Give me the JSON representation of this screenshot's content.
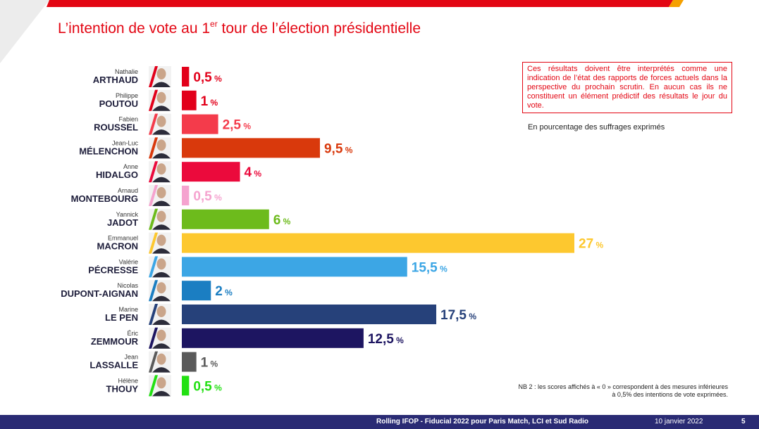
{
  "slide": {
    "title_main": "L’intention de vote au 1",
    "title_sup": "er",
    "title_rest": " tour de l’élection présidentielle",
    "disclaimer": "Ces résultats doivent être interprétés comme une indication de l’état des rapports de forces actuels dans la perspective du prochain scrutin. En aucun cas ils ne constituent un élément prédictif des résultats le jour du vote.",
    "unit_note": "En pourcentage des suffrages exprimés",
    "nb_note": "NB 2 : les scores affichés à « 0 » correspondent à des mesures inférieures à 0,5% des intentions de vote exprimées.",
    "footer_source": "Rolling IFOP - Fiducial 2022 pour Paris Match, LCI et Sud Radio",
    "footer_date": "10 janvier 2022",
    "footer_page": "5",
    "accent_color": "#e30613",
    "footer_color": "#2a2b74"
  },
  "chart_data": {
    "type": "bar",
    "orientation": "horizontal",
    "categories": [
      {
        "first": "Nathalie",
        "last": "ARTHAUD"
      },
      {
        "first": "Philippe",
        "last": "POUTOU"
      },
      {
        "first": "Fabien",
        "last": "ROUSSEL"
      },
      {
        "first": "Jean-Luc",
        "last": "MÉLENCHON"
      },
      {
        "first": "Anne",
        "last": "HIDALGO"
      },
      {
        "first": "Arnaud",
        "last": "MONTEBOURG"
      },
      {
        "first": "Yannick",
        "last": "JADOT"
      },
      {
        "first": "Emmanuel",
        "last": "MACRON"
      },
      {
        "first": "Valérie",
        "last": "PÉCRESSE"
      },
      {
        "first": "Nicolas",
        "last": "DUPONT-AIGNAN"
      },
      {
        "first": "Marine",
        "last": "LE PEN"
      },
      {
        "first": "Éric",
        "last": "ZEMMOUR"
      },
      {
        "first": "Jean",
        "last": "LASSALLE"
      },
      {
        "first": "Hélène",
        "last": "THOUY"
      }
    ],
    "values": [
      0.5,
      1,
      2.5,
      9.5,
      4,
      0.5,
      6,
      27,
      15.5,
      2,
      17.5,
      12.5,
      1,
      0.5
    ],
    "labels": [
      "0,5",
      "1",
      "2,5",
      "9,5",
      "4",
      "0,5",
      "6",
      "27",
      "15,5",
      "2",
      "17,5",
      "12,5",
      "1",
      "0,5"
    ],
    "unit": "%",
    "colors": [
      "#e2001a",
      "#e2001a",
      "#f43b4b",
      "#d9390c",
      "#eb0a3c",
      "#f5a3cf",
      "#6dbb1c",
      "#fdc82f",
      "#3ca6e5",
      "#1b7ec2",
      "#26417a",
      "#1d1561",
      "#5a5a5a",
      "#22e012"
    ],
    "xlim": [
      0,
      27
    ],
    "grid": false,
    "legend": "none"
  }
}
